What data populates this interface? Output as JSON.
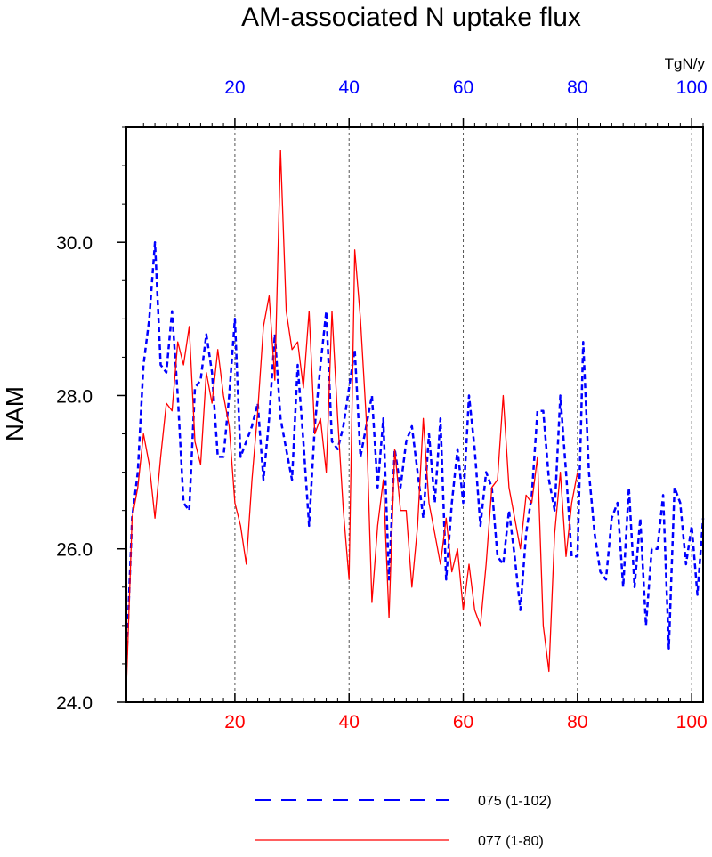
{
  "chart_data": {
    "type": "line",
    "title": "AM-associated N uptake flux",
    "ylabel": "NAM",
    "top_units": "TgN/y",
    "xlim": [
      1,
      102
    ],
    "ylim": [
      24.0,
      31.5
    ],
    "x_ticks": [
      20,
      40,
      60,
      80,
      100
    ],
    "y_ticks": [
      24.0,
      26.0,
      28.0,
      30.0
    ],
    "grid": "vertical dashed at x ticks",
    "top_axis_color": "#0000ff",
    "bottom_axis_color": "#ff0000",
    "series": [
      {
        "name": "075 (1-102)",
        "color": "#0000ff",
        "style": "dashed",
        "x_start": 1,
        "values": [
          24.5,
          26.4,
          27.0,
          28.4,
          29.0,
          30.0,
          28.4,
          28.3,
          29.1,
          28.0,
          26.6,
          26.5,
          28.1,
          28.2,
          28.8,
          28.3,
          27.2,
          27.2,
          28.0,
          29.0,
          27.2,
          27.4,
          27.6,
          27.9,
          26.9,
          27.7,
          28.8,
          27.7,
          27.3,
          26.9,
          28.4,
          27.4,
          26.3,
          27.6,
          28.4,
          29.1,
          27.4,
          27.3,
          27.6,
          28.1,
          28.6,
          27.2,
          27.6,
          28.0,
          26.8,
          27.7,
          25.6,
          27.3,
          26.8,
          27.4,
          27.6,
          27.0,
          26.4,
          27.5,
          26.6,
          27.7,
          25.6,
          26.6,
          27.3,
          26.6,
          28.0,
          27.3,
          26.3,
          27.0,
          26.8,
          25.9,
          25.8,
          26.5,
          25.9,
          25.2,
          26.2,
          26.7,
          27.8,
          27.8,
          26.9,
          26.5,
          28.0,
          27.0,
          25.9,
          25.9,
          28.7,
          27.0,
          26.2,
          25.7,
          25.6,
          26.4,
          26.6,
          25.5,
          26.8,
          25.5,
          26.4,
          25.0,
          26.0,
          26.0,
          26.7,
          24.7,
          26.8,
          26.6,
          25.8,
          26.3,
          25.4,
          26.4
        ]
      },
      {
        "name": "077 (1-80)",
        "color": "#ff0000",
        "style": "solid",
        "x_start": 1,
        "values": [
          24.2,
          26.4,
          26.8,
          27.5,
          27.1,
          26.4,
          27.2,
          27.9,
          27.8,
          28.7,
          28.4,
          28.9,
          27.4,
          27.1,
          28.3,
          27.9,
          28.6,
          28.0,
          27.6,
          26.6,
          26.3,
          25.8,
          26.9,
          27.8,
          28.9,
          29.3,
          28.2,
          31.2,
          29.1,
          28.6,
          28.7,
          28.1,
          29.1,
          27.5,
          27.7,
          27.0,
          29.1,
          27.7,
          26.5,
          25.6,
          29.9,
          29.0,
          27.7,
          25.3,
          26.3,
          26.9,
          25.1,
          27.3,
          26.5,
          26.5,
          25.5,
          26.3,
          27.7,
          26.6,
          26.2,
          25.8,
          26.4,
          25.7,
          26.0,
          25.2,
          25.8,
          25.2,
          25.0,
          25.8,
          26.8,
          26.9,
          28.0,
          26.8,
          26.4,
          26.0,
          26.7,
          26.6,
          27.2,
          25.0,
          24.4,
          26.2,
          27.0,
          25.9,
          26.6,
          27.0
        ]
      }
    ]
  }
}
